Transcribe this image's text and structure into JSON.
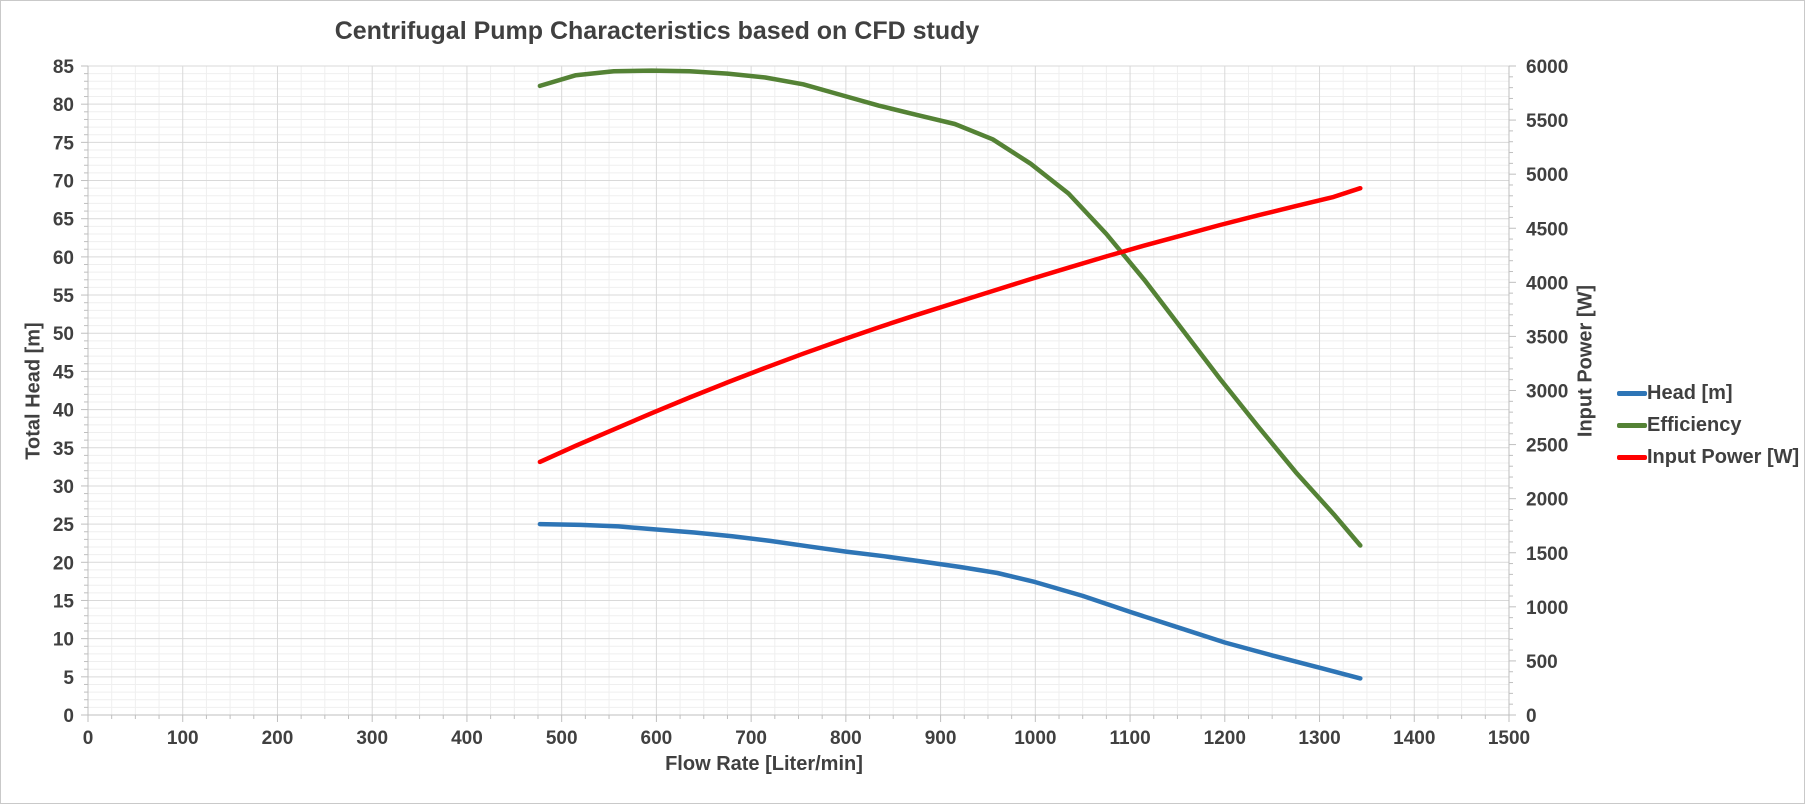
{
  "chart_data": {
    "type": "line",
    "title": "Centrifugal Pump Characteristics based on CFD study",
    "xlabel": "Flow Rate [Liter/min]",
    "ylabel_left": "Total Head [m]",
    "ylabel_right": "Input Power [W]",
    "grid": "major and minor, on",
    "legend_position": "right outside",
    "x_axis": {
      "min": 0,
      "max": 1500,
      "major_step": 100,
      "minor_step": 25,
      "ticks": [
        0,
        100,
        200,
        300,
        400,
        500,
        600,
        700,
        800,
        900,
        1000,
        1100,
        1200,
        1300,
        1400,
        1500
      ]
    },
    "y_left_axis": {
      "min": 0,
      "max": 85,
      "major_step": 5,
      "minor_step": 1,
      "ticks": [
        0,
        5,
        10,
        15,
        20,
        25,
        30,
        35,
        40,
        45,
        50,
        55,
        60,
        65,
        70,
        75,
        80,
        85
      ]
    },
    "y_right_axis": {
      "min": 0,
      "max": 6000,
      "major_step": 500,
      "minor_step": 100,
      "ticks": [
        0,
        500,
        1000,
        1500,
        2000,
        2500,
        3000,
        3500,
        4000,
        4500,
        5000,
        5500,
        6000
      ]
    },
    "series": [
      {
        "name": "Head [m]",
        "axis": "left",
        "color": "#2E75B6",
        "points": [
          [
            477,
            25.0
          ],
          [
            520,
            24.9
          ],
          [
            560,
            24.7
          ],
          [
            600,
            24.3
          ],
          [
            640,
            23.9
          ],
          [
            680,
            23.4
          ],
          [
            720,
            22.8
          ],
          [
            760,
            22.1
          ],
          [
            800,
            21.4
          ],
          [
            840,
            20.8
          ],
          [
            880,
            20.1
          ],
          [
            920,
            19.4
          ],
          [
            960,
            18.6
          ],
          [
            1000,
            17.4
          ],
          [
            1050,
            15.6
          ],
          [
            1100,
            13.5
          ],
          [
            1150,
            11.5
          ],
          [
            1200,
            9.5
          ],
          [
            1250,
            7.8
          ],
          [
            1300,
            6.2
          ],
          [
            1343,
            4.8
          ]
        ]
      },
      {
        "name": "Efficiency",
        "axis": "left",
        "color": "#548235",
        "points": [
          [
            477,
            82.4
          ],
          [
            515,
            83.8
          ],
          [
            555,
            84.3
          ],
          [
            595,
            84.4
          ],
          [
            635,
            84.3
          ],
          [
            675,
            84.0
          ],
          [
            715,
            83.5
          ],
          [
            755,
            82.6
          ],
          [
            795,
            81.2
          ],
          [
            835,
            79.8
          ],
          [
            875,
            78.6
          ],
          [
            915,
            77.4
          ],
          [
            955,
            75.4
          ],
          [
            995,
            72.2
          ],
          [
            1035,
            68.3
          ],
          [
            1075,
            63.0
          ],
          [
            1115,
            57.0
          ],
          [
            1155,
            50.5
          ],
          [
            1195,
            44.0
          ],
          [
            1235,
            37.8
          ],
          [
            1275,
            31.8
          ],
          [
            1315,
            26.3
          ],
          [
            1343,
            22.2
          ]
        ]
      },
      {
        "name": "Input Power [W]",
        "axis": "right",
        "color": "#FF0000",
        "points": [
          [
            477,
            2340
          ],
          [
            515,
            2490
          ],
          [
            555,
            2640
          ],
          [
            595,
            2790
          ],
          [
            635,
            2935
          ],
          [
            675,
            3075
          ],
          [
            715,
            3210
          ],
          [
            755,
            3340
          ],
          [
            795,
            3465
          ],
          [
            835,
            3585
          ],
          [
            875,
            3700
          ],
          [
            915,
            3810
          ],
          [
            955,
            3920
          ],
          [
            995,
            4030
          ],
          [
            1035,
            4135
          ],
          [
            1075,
            4240
          ],
          [
            1115,
            4340
          ],
          [
            1155,
            4435
          ],
          [
            1195,
            4530
          ],
          [
            1235,
            4620
          ],
          [
            1275,
            4705
          ],
          [
            1315,
            4790
          ],
          [
            1343,
            4870
          ]
        ]
      }
    ],
    "style": {
      "text_color": "#404040",
      "axis_line_color": "#BFBFBF",
      "major_grid_color": "#D9D9D9",
      "minor_grid_color": "#EFEFEF",
      "line_width": 4.5
    }
  }
}
